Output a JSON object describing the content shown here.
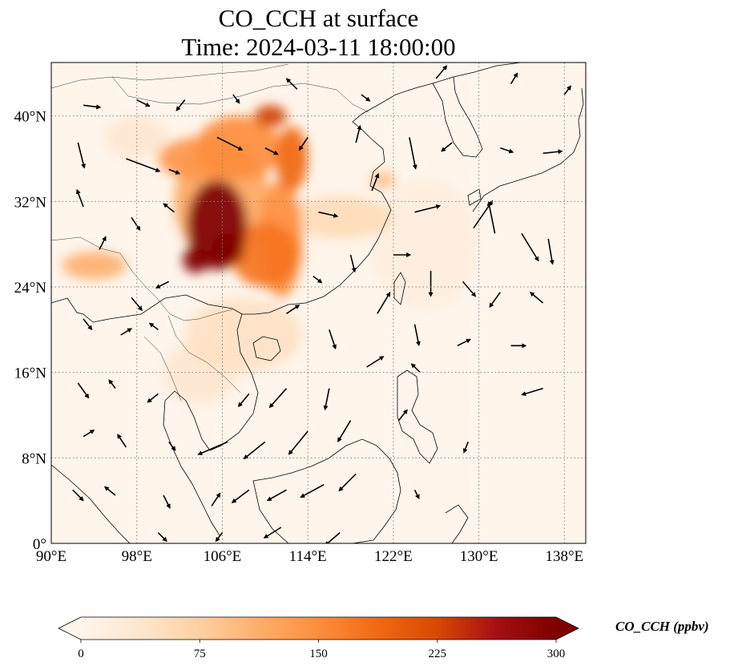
{
  "title": {
    "line1": "CO_CCH at surface",
    "line2": "Time: 2024-03-11 18:00:00"
  },
  "map": {
    "lon_range": [
      90,
      140
    ],
    "lat_range": [
      0,
      45
    ],
    "x_ticks": [
      {
        "value": 90,
        "label": "90°E"
      },
      {
        "value": 98,
        "label": "98°E"
      },
      {
        "value": 106,
        "label": "106°E"
      },
      {
        "value": 114,
        "label": "114°E"
      },
      {
        "value": 122,
        "label": "122°E"
      },
      {
        "value": 130,
        "label": "130°E"
      },
      {
        "value": 138,
        "label": "138°E"
      }
    ],
    "y_ticks": [
      {
        "value": 0,
        "label": "0°"
      },
      {
        "value": 8,
        "label": "8°N"
      },
      {
        "value": 16,
        "label": "16°N"
      },
      {
        "value": 24,
        "label": "24°N"
      },
      {
        "value": 32,
        "label": "32°N"
      },
      {
        "value": 40,
        "label": "40°N"
      }
    ],
    "gridlines": true,
    "background_color": "#fff5eb",
    "coast_color": "#000000"
  },
  "colorbar": {
    "title": "CO_CCH (ppbv)",
    "range": [
      0,
      300
    ],
    "ticks": [
      {
        "value": 0,
        "label": "0"
      },
      {
        "value": 75,
        "label": "75"
      },
      {
        "value": 150,
        "label": "150"
      },
      {
        "value": 225,
        "label": "225"
      },
      {
        "value": 300,
        "label": "300"
      }
    ],
    "colormap": [
      "#fff5eb",
      "#fee6ce",
      "#fdd0a2",
      "#fdae6b",
      "#fd8d3c",
      "#f16913",
      "#d94801",
      "#a50f15",
      "#7f0000"
    ],
    "extend": "both"
  },
  "plumes": [
    {
      "lon": 105.5,
      "lat": 29.8,
      "rx": 2.8,
      "ry": 4.2,
      "value": 300
    },
    {
      "lon": 103.5,
      "lat": 26.5,
      "rx": 1.2,
      "ry": 1.2,
      "value": 300
    },
    {
      "lon": 106.5,
      "lat": 27.5,
      "rx": 1.5,
      "ry": 1.5,
      "value": 290
    },
    {
      "lon": 110.0,
      "lat": 27.0,
      "rx": 3.2,
      "ry": 3.0,
      "value": 175
    },
    {
      "lon": 106.0,
      "lat": 32.0,
      "rx": 4.5,
      "ry": 5.5,
      "value": 120
    },
    {
      "lon": 110.5,
      "lat": 40.0,
      "rx": 1.5,
      "ry": 1.0,
      "value": 230
    },
    {
      "lon": 107.5,
      "lat": 37.0,
      "rx": 4.0,
      "ry": 3.0,
      "value": 150
    },
    {
      "lon": 104.0,
      "lat": 36.0,
      "rx": 4.0,
      "ry": 2.0,
      "value": 140
    },
    {
      "lon": 112.5,
      "lat": 36.0,
      "rx": 1.5,
      "ry": 3.0,
      "value": 190
    },
    {
      "lon": 111.5,
      "lat": 28.5,
      "rx": 2.0,
      "ry": 5.5,
      "value": 150
    },
    {
      "lon": 108.0,
      "lat": 19.5,
      "rx": 5.5,
      "ry": 3.5,
      "value": 45
    },
    {
      "lon": 104.0,
      "lat": 16.0,
      "rx": 3.5,
      "ry": 3.0,
      "value": 35
    },
    {
      "lon": 117.0,
      "lat": 30.5,
      "rx": 5.0,
      "ry": 2.0,
      "value": 55
    },
    {
      "lon": 94.0,
      "lat": 26.0,
      "rx": 3.0,
      "ry": 1.3,
      "value": 110
    },
    {
      "lon": 98.0,
      "lat": 38.0,
      "rx": 3.0,
      "ry": 2.0,
      "value": 35
    },
    {
      "lon": 121.0,
      "lat": 34.0,
      "rx": 1.2,
      "ry": 0.8,
      "value": 90
    },
    {
      "lon": 125.0,
      "lat": 28.0,
      "rx": 5.0,
      "ry": 6.0,
      "value": 18
    }
  ],
  "wind_vectors": [
    {
      "lon": 93.0,
      "lat": 41.0,
      "u": 0.8,
      "v": -0.1
    },
    {
      "lon": 98.0,
      "lat": 41.5,
      "u": 0.6,
      "v": -0.3
    },
    {
      "lon": 102.5,
      "lat": 41.5,
      "u": -0.4,
      "v": -0.5
    },
    {
      "lon": 107.0,
      "lat": 42.0,
      "u": 0.3,
      "v": -0.4
    },
    {
      "lon": 113.0,
      "lat": 42.5,
      "u": -0.5,
      "v": 0.5
    },
    {
      "lon": 119.0,
      "lat": 42.0,
      "u": 0.4,
      "v": -0.3
    },
    {
      "lon": 126.0,
      "lat": 43.5,
      "u": 0.5,
      "v": 0.6
    },
    {
      "lon": 133.0,
      "lat": 43.0,
      "u": 0.3,
      "v": 0.5
    },
    {
      "lon": 138.0,
      "lat": 42.0,
      "u": 0.3,
      "v": 0.4
    },
    {
      "lon": 92.5,
      "lat": 37.5,
      "u": 0.3,
      "v": -1.2
    },
    {
      "lon": 97.0,
      "lat": 36.0,
      "u": 1.6,
      "v": -0.6
    },
    {
      "lon": 101.0,
      "lat": 35.0,
      "u": 0.5,
      "v": -0.2
    },
    {
      "lon": 105.5,
      "lat": 38.0,
      "u": 1.2,
      "v": -0.6
    },
    {
      "lon": 110.0,
      "lat": 37.0,
      "u": 0.6,
      "v": -0.3
    },
    {
      "lon": 114.0,
      "lat": 38.0,
      "u": -0.4,
      "v": -0.6
    },
    {
      "lon": 118.5,
      "lat": 37.5,
      "u": 0.2,
      "v": 0.8
    },
    {
      "lon": 123.5,
      "lat": 38.0,
      "u": 0.3,
      "v": -1.5
    },
    {
      "lon": 127.5,
      "lat": 37.5,
      "u": -0.5,
      "v": -0.4
    },
    {
      "lon": 132.0,
      "lat": 37.0,
      "u": 0.6,
      "v": -0.2
    },
    {
      "lon": 136.0,
      "lat": 36.5,
      "u": 0.9,
      "v": 0.1
    },
    {
      "lon": 93.0,
      "lat": 31.5,
      "u": -0.3,
      "v": 0.8
    },
    {
      "lon": 97.5,
      "lat": 30.5,
      "u": 0.4,
      "v": -0.6
    },
    {
      "lon": 101.5,
      "lat": 31.0,
      "u": -0.5,
      "v": 0.4
    },
    {
      "lon": 115.0,
      "lat": 31.0,
      "u": 0.9,
      "v": -0.2
    },
    {
      "lon": 120.0,
      "lat": 33.0,
      "u": 0.3,
      "v": 0.8
    },
    {
      "lon": 124.0,
      "lat": 31.0,
      "u": 1.2,
      "v": 0.3
    },
    {
      "lon": 129.5,
      "lat": 29.5,
      "u": 0.9,
      "v": 1.3
    },
    {
      "lon": 131.5,
      "lat": 29.0,
      "u": -0.3,
      "v": 1.5
    },
    {
      "lon": 134.0,
      "lat": 29.0,
      "u": 0.8,
      "v": -1.3
    },
    {
      "lon": 136.5,
      "lat": 28.5,
      "u": 0.2,
      "v": -1.2
    },
    {
      "lon": 94.5,
      "lat": 27.5,
      "u": 0.3,
      "v": 0.6
    },
    {
      "lon": 97.5,
      "lat": 23.0,
      "u": 0.5,
      "v": -0.6
    },
    {
      "lon": 101.0,
      "lat": 24.5,
      "u": -0.6,
      "v": -0.3
    },
    {
      "lon": 114.5,
      "lat": 25.0,
      "u": 0.4,
      "v": -0.3
    },
    {
      "lon": 118.0,
      "lat": 27.0,
      "u": 0.2,
      "v": -0.8
    },
    {
      "lon": 122.0,
      "lat": 27.0,
      "u": 0.8,
      "v": 0.0
    },
    {
      "lon": 125.5,
      "lat": 25.5,
      "u": 0.0,
      "v": -1.2
    },
    {
      "lon": 128.5,
      "lat": 24.5,
      "u": 0.6,
      "v": -0.7
    },
    {
      "lon": 132.0,
      "lat": 23.5,
      "u": -0.5,
      "v": -0.7
    },
    {
      "lon": 136.0,
      "lat": 22.5,
      "u": -0.6,
      "v": 0.5
    },
    {
      "lon": 93.0,
      "lat": 21.0,
      "u": 0.4,
      "v": -0.5
    },
    {
      "lon": 96.5,
      "lat": 19.5,
      "u": 0.5,
      "v": 0.3
    },
    {
      "lon": 100.0,
      "lat": 20.0,
      "u": -0.4,
      "v": 0.3
    },
    {
      "lon": 112.0,
      "lat": 21.5,
      "u": 0.6,
      "v": 0.4
    },
    {
      "lon": 116.0,
      "lat": 20.0,
      "u": 0.3,
      "v": -0.9
    },
    {
      "lon": 120.5,
      "lat": 21.5,
      "u": 0.6,
      "v": 1.0
    },
    {
      "lon": 124.0,
      "lat": 20.5,
      "u": 0.2,
      "v": -1.0
    },
    {
      "lon": 128.0,
      "lat": 18.5,
      "u": 0.6,
      "v": 0.3
    },
    {
      "lon": 133.0,
      "lat": 18.5,
      "u": 0.7,
      "v": 0.0
    },
    {
      "lon": 92.5,
      "lat": 15.0,
      "u": 0.5,
      "v": -0.7
    },
    {
      "lon": 96.0,
      "lat": 14.5,
      "u": -0.3,
      "v": 0.4
    },
    {
      "lon": 100.0,
      "lat": 14.0,
      "u": -0.5,
      "v": -0.4
    },
    {
      "lon": 108.5,
      "lat": 14.0,
      "u": -0.5,
      "v": -0.6
    },
    {
      "lon": 112.0,
      "lat": 14.5,
      "u": -0.8,
      "v": -0.9
    },
    {
      "lon": 116.0,
      "lat": 14.5,
      "u": -0.2,
      "v": -1.0
    },
    {
      "lon": 119.5,
      "lat": 16.5,
      "u": 0.8,
      "v": 0.5
    },
    {
      "lon": 124.5,
      "lat": 16.0,
      "u": -0.4,
      "v": 0.4
    },
    {
      "lon": 136.0,
      "lat": 14.5,
      "u": -1.0,
      "v": -0.3
    },
    {
      "lon": 93.0,
      "lat": 10.0,
      "u": 0.5,
      "v": 0.3
    },
    {
      "lon": 97.0,
      "lat": 9.0,
      "u": -0.4,
      "v": 0.6
    },
    {
      "lon": 101.0,
      "lat": 9.5,
      "u": 0.3,
      "v": -0.4
    },
    {
      "lon": 106.5,
      "lat": 9.5,
      "u": -1.4,
      "v": -0.6
    },
    {
      "lon": 110.0,
      "lat": 9.5,
      "u": -1.0,
      "v": -0.8
    },
    {
      "lon": 114.0,
      "lat": 10.5,
      "u": -0.9,
      "v": -1.1
    },
    {
      "lon": 118.0,
      "lat": 11.5,
      "u": -0.6,
      "v": -1.0
    },
    {
      "lon": 122.5,
      "lat": 11.5,
      "u": 0.4,
      "v": 0.5
    },
    {
      "lon": 129.0,
      "lat": 9.5,
      "u": -0.2,
      "v": -0.5
    },
    {
      "lon": 92.0,
      "lat": 5.0,
      "u": 0.5,
      "v": -0.5
    },
    {
      "lon": 96.0,
      "lat": 4.5,
      "u": -0.5,
      "v": 0.4
    },
    {
      "lon": 100.5,
      "lat": 4.5,
      "u": 0.3,
      "v": -0.6
    },
    {
      "lon": 105.0,
      "lat": 3.5,
      "u": 0.4,
      "v": 0.6
    },
    {
      "lon": 108.5,
      "lat": 5.0,
      "u": -0.8,
      "v": -0.6
    },
    {
      "lon": 112.0,
      "lat": 5.0,
      "u": -0.9,
      "v": -0.5
    },
    {
      "lon": 115.5,
      "lat": 5.5,
      "u": -1.1,
      "v": -0.6
    },
    {
      "lon": 118.5,
      "lat": 6.5,
      "u": -0.8,
      "v": -0.8
    },
    {
      "lon": 124.0,
      "lat": 5.0,
      "u": 0.2,
      "v": -0.4
    },
    {
      "lon": 100.0,
      "lat": 1.0,
      "u": 0.4,
      "v": -0.4
    },
    {
      "lon": 106.0,
      "lat": 1.0,
      "u": -0.3,
      "v": -0.4
    },
    {
      "lon": 111.5,
      "lat": 1.5,
      "u": -0.8,
      "v": -0.5
    },
    {
      "lon": 117.0,
      "lat": 1.0,
      "u": -0.7,
      "v": -0.6
    }
  ]
}
